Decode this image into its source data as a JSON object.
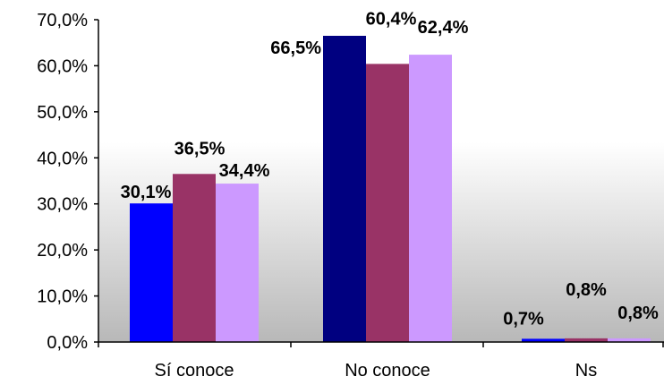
{
  "chart_data": {
    "type": "bar",
    "categories": [
      "Sí conoce",
      "No conoce",
      "Ns"
    ],
    "series": [
      {
        "color": "#0000ff",
        "values": [
          30.1,
          66.5,
          0.7
        ]
      },
      {
        "color": "#993366",
        "values": [
          36.5,
          60.4,
          0.8
        ]
      },
      {
        "color": "#cc99ff",
        "values": [
          34.4,
          62.4,
          0.8
        ]
      }
    ],
    "value_labels": [
      [
        "30,1%",
        "66,5%",
        "0,7%"
      ],
      [
        "36,5%",
        "60,4%",
        "0,8%"
      ],
      [
        "34,4%",
        "62,4%",
        "0,8%"
      ]
    ],
    "y_ticks": [
      {
        "value": 0,
        "label": "0,0%"
      },
      {
        "value": 10,
        "label": "10,0%"
      },
      {
        "value": 20,
        "label": "20,0%"
      },
      {
        "value": 30,
        "label": "30,0%"
      },
      {
        "value": 40,
        "label": "40,0%"
      },
      {
        "value": 50,
        "label": "50,0%"
      },
      {
        "value": 60,
        "label": "60,0%"
      },
      {
        "value": 70,
        "label": "70,0%"
      }
    ],
    "ylim": [
      0,
      70
    ],
    "title": "",
    "xlabel": "",
    "ylabel": "",
    "grid": false,
    "legend": "none",
    "plot_background": "gradient-white-to-gray"
  }
}
